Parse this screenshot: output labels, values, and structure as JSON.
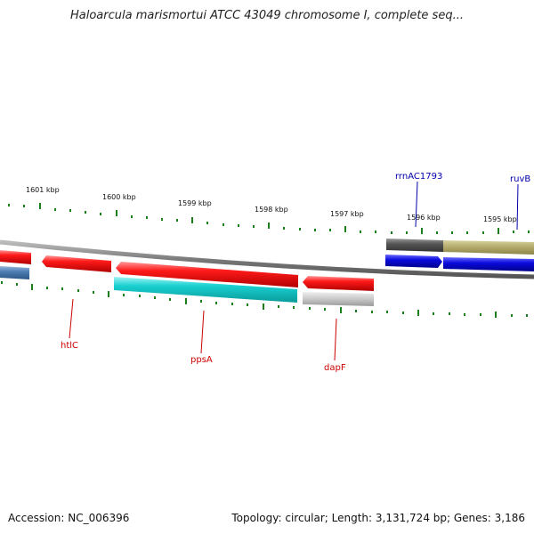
{
  "title": "Haloarcula marismortui ATCC 43049 chromosome I, complete seq...",
  "footer": {
    "accession": "Accession: NC_006396",
    "summary": "Topology: circular; Length: 3,131,724 bp; Genes: 3,186"
  },
  "ruler": {
    "labels": [
      "1601 kbp",
      "1600 kbp",
      "1599 kbp",
      "1598 kbp",
      "1597 kbp",
      "1596 kbp",
      "1595 kbp"
    ]
  },
  "genes": [
    {
      "name": "htlC",
      "color": "#cc0000"
    },
    {
      "name": "ppsA",
      "color": "#cc0000"
    },
    {
      "name": "dapF",
      "color": "#cc0000"
    },
    {
      "name": "rrnAC1793",
      "color": "#0000aa"
    },
    {
      "name": "ruvB",
      "color": "#0000aa"
    }
  ],
  "colors": {
    "forward_gene": "#ff1a1a",
    "reverse_gene": "#19d0d0",
    "rna_gene": "#0b0bdd",
    "tick": "#1a7f1a",
    "backbone": "#888888"
  }
}
